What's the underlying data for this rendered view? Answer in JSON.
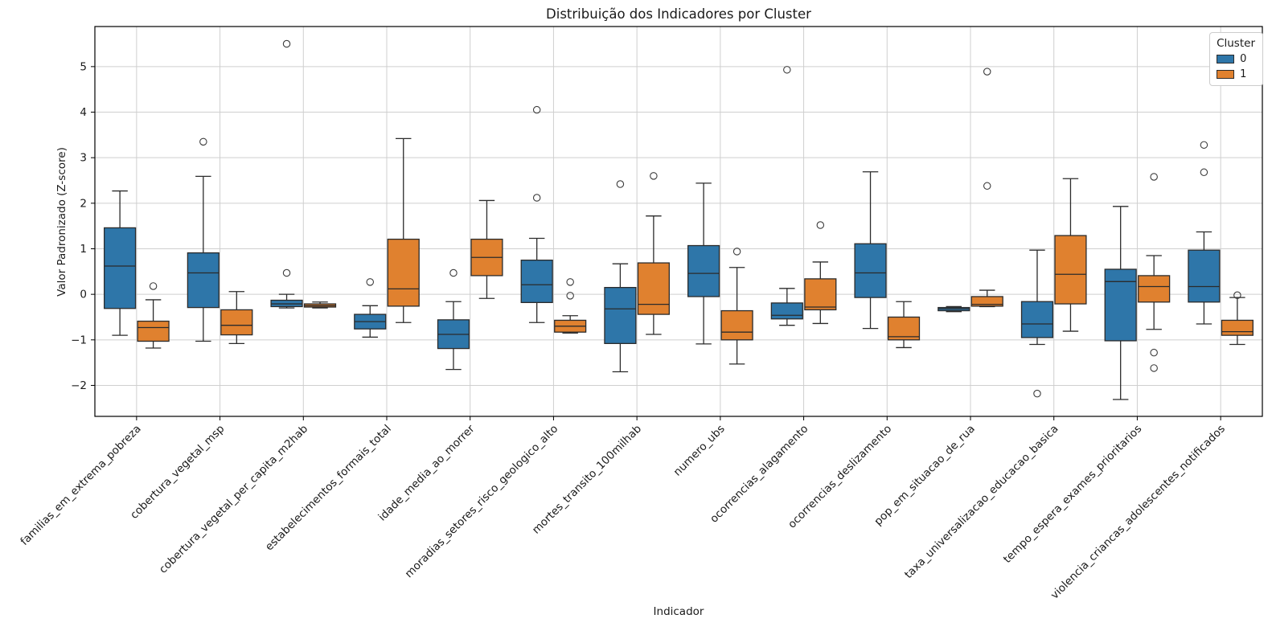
{
  "title": "Distribuição dos Indicadores por Cluster",
  "xlabel": "Indicador",
  "ylabel": "Valor Padronizado (Z-score)",
  "legend": {
    "title": "Cluster",
    "entries": [
      {
        "label": "0",
        "color": "#2E76A9"
      },
      {
        "label": "1",
        "color": "#E0812F"
      }
    ]
  },
  "colors": {
    "cluster0": "#2E76A9",
    "cluster1": "#E0812F",
    "box_edge": "#2b2b2b",
    "flier_edge": "#3c3c3c",
    "grid": "#cfcfcf",
    "spine": "#000000",
    "background": "#ffffff"
  },
  "chart_data": {
    "type": "boxplot",
    "title": "Distribuição dos Indicadores por Cluster",
    "xlabel": "Indicador",
    "ylabel": "Valor Padronizado (Z-score)",
    "grid": true,
    "legend_title": "Cluster",
    "legend_position": "upper right",
    "ylim": [
      -2.68,
      5.88
    ],
    "yticks": [
      -2,
      -1,
      0,
      1,
      2,
      3,
      4,
      5
    ],
    "categories": [
      "familias_em_extrema_pobreza",
      "cobertura_vegetal_msp",
      "cobertura_vegetal_per_capita_m2hab",
      "estabelecimentos_formais_total",
      "idade_media_ao_morrer",
      "moradias_setores_risco_geologico_alto",
      "mortes_transito_100milhab",
      "numero_ubs",
      "ocorrencias_alagamento",
      "ocorrencias_deslizamento",
      "pop_em_situacao_de_rua",
      "taxa_universalizacao_educacao_basica",
      "tempo_espera_exames_prioritarios",
      "violencia_criancas_adolescentes_notificados"
    ],
    "series": [
      {
        "name": "0",
        "color": "#2E76A9",
        "boxes": [
          {
            "whislo": -0.9,
            "q1": -0.31,
            "med": 0.62,
            "q3": 1.46,
            "whishi": 2.27,
            "fliers": []
          },
          {
            "whislo": -1.03,
            "q1": -0.29,
            "med": 0.47,
            "q3": 0.91,
            "whishi": 2.59,
            "fliers": [
              3.35
            ]
          },
          {
            "whislo": -0.3,
            "q1": -0.27,
            "med": -0.21,
            "q3": -0.13,
            "whishi": 0.0,
            "fliers": [
              5.5,
              0.47
            ]
          },
          {
            "whislo": -0.94,
            "q1": -0.76,
            "med": -0.6,
            "q3": -0.44,
            "whishi": -0.25,
            "fliers": [
              0.27
            ]
          },
          {
            "whislo": -1.65,
            "q1": -1.19,
            "med": -0.88,
            "q3": -0.56,
            "whishi": -0.16,
            "fliers": [
              0.47
            ]
          },
          {
            "whislo": -0.62,
            "q1": -0.18,
            "med": 0.21,
            "q3": 0.75,
            "whishi": 1.23,
            "fliers": [
              4.05,
              2.12
            ]
          },
          {
            "whislo": -1.7,
            "q1": -1.08,
            "med": -0.32,
            "q3": 0.15,
            "whishi": 0.67,
            "fliers": [
              2.42
            ]
          },
          {
            "whislo": -1.09,
            "q1": -0.05,
            "med": 0.46,
            "q3": 1.07,
            "whishi": 2.44,
            "fliers": []
          },
          {
            "whislo": -0.68,
            "q1": -0.54,
            "med": -0.46,
            "q3": -0.19,
            "whishi": 0.13,
            "fliers": [
              4.93
            ]
          },
          {
            "whislo": -0.75,
            "q1": -0.07,
            "med": 0.47,
            "q3": 1.11,
            "whishi": 2.69,
            "fliers": []
          },
          {
            "whislo": -0.38,
            "q1": -0.36,
            "med": -0.32,
            "q3": -0.29,
            "whishi": -0.27,
            "fliers": []
          },
          {
            "whislo": -1.1,
            "q1": -0.95,
            "med": -0.65,
            "q3": -0.16,
            "whishi": 0.97,
            "fliers": [
              -2.18
            ]
          },
          {
            "whislo": -2.31,
            "q1": -1.02,
            "med": 0.28,
            "q3": 0.55,
            "whishi": 1.93,
            "fliers": []
          },
          {
            "whislo": -0.65,
            "q1": -0.17,
            "med": 0.17,
            "q3": 0.97,
            "whishi": 1.37,
            "fliers": [
              3.28,
              2.68
            ]
          }
        ]
      },
      {
        "name": "1",
        "color": "#E0812F",
        "boxes": [
          {
            "whislo": -1.18,
            "q1": -1.03,
            "med": -0.73,
            "q3": -0.59,
            "whishi": -0.12,
            "fliers": [
              0.18
            ]
          },
          {
            "whislo": -1.08,
            "q1": -0.89,
            "med": -0.68,
            "q3": -0.34,
            "whishi": 0.06,
            "fliers": []
          },
          {
            "whislo": -0.3,
            "q1": -0.28,
            "med": -0.25,
            "q3": -0.21,
            "whishi": -0.17,
            "fliers": []
          },
          {
            "whislo": -0.62,
            "q1": -0.26,
            "med": 0.12,
            "q3": 1.21,
            "whishi": 3.42,
            "fliers": []
          },
          {
            "whislo": -0.09,
            "q1": 0.41,
            "med": 0.81,
            "q3": 1.21,
            "whishi": 2.06,
            "fliers": []
          },
          {
            "whislo": -0.85,
            "q1": -0.83,
            "med": -0.7,
            "q3": -0.57,
            "whishi": -0.47,
            "fliers": [
              0.27,
              -0.03
            ]
          },
          {
            "whislo": -0.88,
            "q1": -0.44,
            "med": -0.22,
            "q3": 0.69,
            "whishi": 1.72,
            "fliers": [
              2.6
            ]
          },
          {
            "whislo": -1.53,
            "q1": -1.0,
            "med": -0.83,
            "q3": -0.36,
            "whishi": 0.59,
            "fliers": [
              0.94
            ]
          },
          {
            "whislo": -0.64,
            "q1": -0.34,
            "med": -0.28,
            "q3": 0.34,
            "whishi": 0.71,
            "fliers": [
              1.52
            ]
          },
          {
            "whislo": -1.17,
            "q1": -1.0,
            "med": -0.93,
            "q3": -0.5,
            "whishi": -0.16,
            "fliers": []
          },
          {
            "whislo": -0.27,
            "q1": -0.26,
            "med": -0.22,
            "q3": -0.05,
            "whishi": 0.09,
            "fliers": [
              4.89,
              2.38
            ]
          },
          {
            "whislo": -0.81,
            "q1": -0.21,
            "med": 0.44,
            "q3": 1.29,
            "whishi": 2.54,
            "fliers": []
          },
          {
            "whislo": -0.77,
            "q1": -0.17,
            "med": 0.17,
            "q3": 0.41,
            "whishi": 0.85,
            "fliers": [
              2.58,
              -1.28,
              -1.62
            ]
          },
          {
            "whislo": -1.1,
            "q1": -0.9,
            "med": -0.82,
            "q3": -0.57,
            "whishi": -0.07,
            "fliers": [
              -0.02
            ]
          }
        ]
      }
    ]
  }
}
